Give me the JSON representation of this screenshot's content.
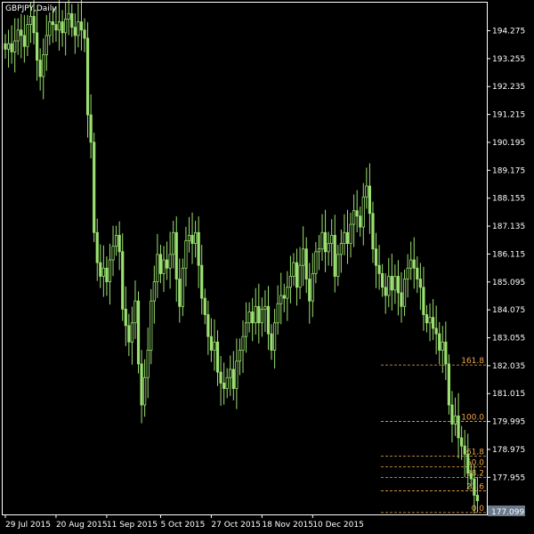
{
  "chart_data": {
    "type": "candlestick",
    "title": "GBPJPY,Daily",
    "symbol": "GBPJPY",
    "timeframe": "Daily",
    "background_color": "#000000",
    "bull_color": "#00ff00",
    "bear_color": "#00ff00",
    "bar_color": "#9be070",
    "fib_color": "#f2a64a",
    "ylim": [
      176.6,
      195.3
    ],
    "yticks": [
      "194.275",
      "193.255",
      "192.235",
      "191.215",
      "190.195",
      "189.175",
      "188.155",
      "187.135",
      "186.115",
      "185.095",
      "184.075",
      "183.055",
      "182.035",
      "181.015",
      "179.995",
      "178.975",
      "177.955"
    ],
    "xticks": [
      "29 Jul 2015",
      "20 Aug 2015",
      "11 Sep 2015",
      "5 Oct 2015",
      "27 Oct 2015",
      "18 Nov 2015",
      "10 Dec 2015"
    ],
    "current_price": "177.099",
    "fibonacci": [
      {
        "label": "161.8",
        "value": 182.06
      },
      {
        "label": "100.0",
        "value": 180.0
      },
      {
        "label": "61.8",
        "value": 178.73
      },
      {
        "label": "50.0",
        "value": 178.34
      },
      {
        "label": "38.2",
        "value": 177.95
      },
      {
        "label": "23.6",
        "value": 177.46
      },
      {
        "label": "0.0",
        "value": 176.67
      }
    ],
    "closes": [
      193.6,
      193.8,
      193.5,
      193.9,
      194.3,
      194.1,
      193.7,
      194.5,
      194.8,
      194.2,
      193.2,
      192.6,
      193.4,
      194.1,
      194.6,
      194.5,
      194.3,
      194.6,
      194.2,
      194.7,
      194.9,
      194.4,
      194.1,
      194.6,
      194.3,
      194.0,
      191.2,
      190.2,
      186.9,
      185.8,
      185.3,
      185.6,
      185.1,
      185.9,
      186.4,
      186.8,
      186.2,
      184.1,
      183.5,
      182.9,
      183.6,
      184.4,
      182.1,
      180.6,
      181.6,
      182.6,
      184.4,
      185.1,
      186.1,
      185.4,
      185.9,
      185.6,
      186.1,
      186.9,
      185.2,
      184.2,
      185.6,
      186.6,
      186.8,
      186.5,
      186.9,
      185.7,
      184.5,
      183.9,
      183.1,
      182.6,
      182.9,
      181.8,
      181.4,
      181.2,
      181.6,
      181.9,
      181.2,
      182.2,
      182.6,
      183.1,
      183.6,
      184.0,
      183.6,
      184.2,
      183.6,
      184.1,
      184.2,
      183.2,
      182.6,
      183.6,
      184.3,
      184.6,
      184.5,
      184.9,
      185.3,
      185.8,
      184.9,
      185.7,
      186.3,
      185.2,
      184.4,
      185.4,
      186.2,
      186.3,
      186.9,
      186.2,
      186.5,
      186.8,
      185.3,
      186.1,
      186.5,
      186.9,
      186.5,
      187.2,
      187.7,
      187.5,
      187.1,
      188.2,
      188.6,
      187.6,
      186.3,
      185.7,
      185.4,
      184.9,
      184.6,
      185.3,
      184.8,
      185.3,
      184.7,
      184.2,
      185.2,
      185.6,
      185.9,
      185.6,
      185.2,
      184.9,
      183.9,
      183.6,
      183.8,
      183.4,
      183.2,
      182.6,
      182.9,
      182.1,
      180.6,
      179.9,
      180.2,
      179.4,
      179.1,
      178.8,
      178.1,
      177.9,
      177.3,
      177.1
    ]
  }
}
